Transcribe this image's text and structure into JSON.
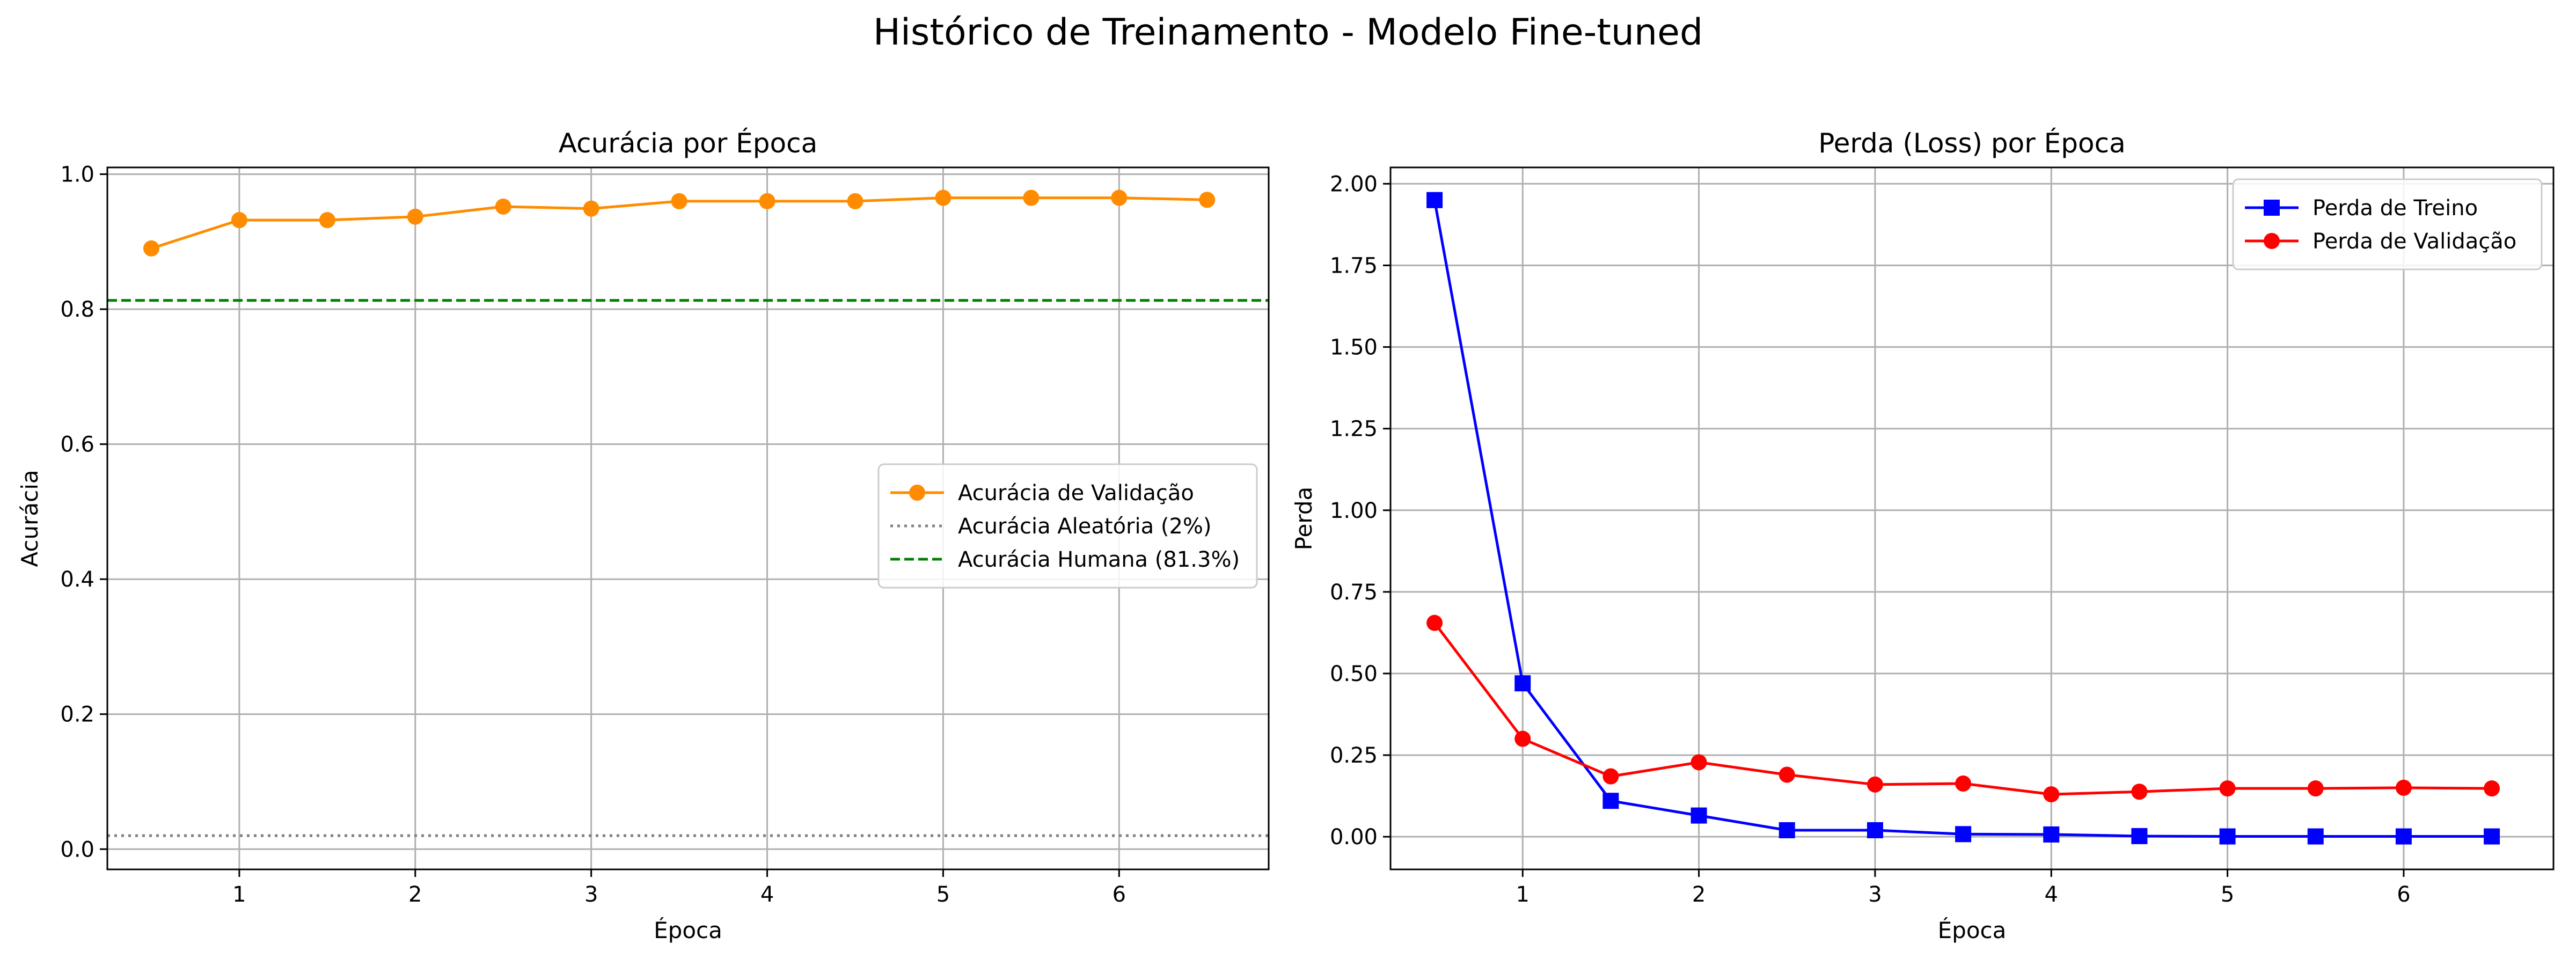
{
  "figure": {
    "suptitle": "Histórico de Treinamento - Modelo Fine-tuned"
  },
  "chart_data": [
    {
      "type": "line",
      "title": "Acurácia por Época",
      "xlabel": "Época",
      "ylabel": "Acurácia",
      "xlim": [
        0.25,
        6.85
      ],
      "ylim": [
        -0.03,
        1.01
      ],
      "xticks": [
        1,
        2,
        3,
        4,
        5,
        6
      ],
      "xtick_labels": [
        "1",
        "2",
        "3",
        "4",
        "5",
        "6"
      ],
      "yticks": [
        0.0,
        0.2,
        0.4,
        0.6,
        0.8,
        1.0
      ],
      "ytick_labels": [
        "0.0",
        "0.2",
        "0.4",
        "0.6",
        "0.8",
        "1.0"
      ],
      "grid": true,
      "legend_position": "center-right",
      "x": [
        0.5,
        1.0,
        1.5,
        2.0,
        2.5,
        3.0,
        3.5,
        4.0,
        4.5,
        5.0,
        5.5,
        6.0,
        6.5
      ],
      "series": [
        {
          "name": "Acurácia de Validação",
          "color": "#ff8c00",
          "marker": "circle",
          "values": [
            0.89,
            0.932,
            0.932,
            0.937,
            0.952,
            0.949,
            0.96,
            0.96,
            0.96,
            0.965,
            0.965,
            0.965,
            0.962
          ]
        }
      ],
      "reference_lines": [
        {
          "name": "Acurácia Aleatória (2%)",
          "value": 0.02,
          "color": "#808080",
          "style": "dotted"
        },
        {
          "name": "Acurácia Humana (81.3%)",
          "value": 0.813,
          "color": "#008000",
          "style": "dashed"
        }
      ]
    },
    {
      "type": "line",
      "title": "Perda (Loss) por Época",
      "xlabel": "Época",
      "ylabel": "Perda",
      "xlim": [
        0.25,
        6.85
      ],
      "ylim": [
        -0.1,
        2.05
      ],
      "xticks": [
        1,
        2,
        3,
        4,
        5,
        6
      ],
      "xtick_labels": [
        "1",
        "2",
        "3",
        "4",
        "5",
        "6"
      ],
      "yticks": [
        0.0,
        0.25,
        0.5,
        0.75,
        1.0,
        1.25,
        1.5,
        1.75,
        2.0
      ],
      "ytick_labels": [
        "0.00",
        "0.25",
        "0.50",
        "0.75",
        "1.00",
        "1.25",
        "1.50",
        "1.75",
        "2.00"
      ],
      "grid": true,
      "legend_position": "top-right",
      "x": [
        0.5,
        1.0,
        1.5,
        2.0,
        2.5,
        3.0,
        3.5,
        4.0,
        4.5,
        5.0,
        5.5,
        6.0,
        6.5
      ],
      "series": [
        {
          "name": "Perda de Treino",
          "color": "#0000ff",
          "marker": "square",
          "values": [
            1.95,
            0.47,
            0.11,
            0.065,
            0.02,
            0.02,
            0.008,
            0.007,
            0.002,
            0.001,
            0.001,
            0.001,
            0.001
          ]
        },
        {
          "name": "Perda de Validação",
          "color": "#ff0000",
          "marker": "circle",
          "values": [
            0.655,
            0.3,
            0.185,
            0.228,
            0.19,
            0.16,
            0.163,
            0.13,
            0.138,
            0.148,
            0.148,
            0.15,
            0.148
          ]
        }
      ],
      "reference_lines": []
    }
  ]
}
